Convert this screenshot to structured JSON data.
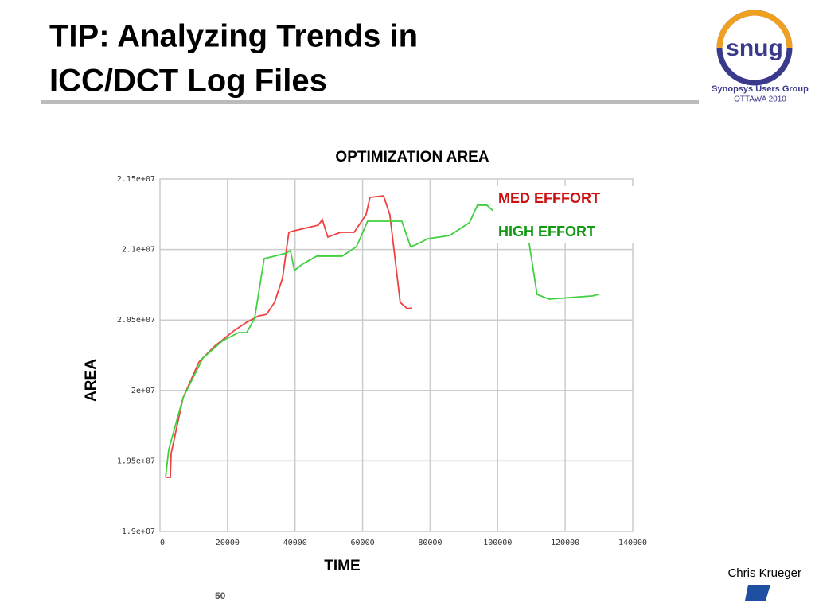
{
  "header": {
    "title_line1": "TIP: Analyzing Trends in",
    "title_line2": "ICC/DCT Log Files",
    "logo": "snug",
    "logo_caption": "Synopsys Users Group",
    "logo_event": "OTTAWA 2010"
  },
  "footer": {
    "author": "Chris Krueger",
    "page": "50"
  },
  "chart_data": {
    "type": "line",
    "title": "OPTIMIZATION AREA",
    "x_label": "TIME",
    "y_label": "AREA",
    "xlim": [
      0,
      140000
    ],
    "xticks": [
      0,
      20000,
      40000,
      60000,
      80000,
      100000,
      120000,
      140000
    ],
    "ylim": [
      19000000,
      21500000
    ],
    "yticks": [
      {
        "value": 19000000,
        "label": "1.9e+07"
      },
      {
        "value": 19500000,
        "label": "1.95e+07"
      },
      {
        "value": 20000000,
        "label": "2e+07"
      },
      {
        "value": 20500000,
        "label": "2.05e+07"
      },
      {
        "value": 21000000,
        "label": "2.1e+07"
      },
      {
        "value": 21500000,
        "label": "2.15e+07"
      }
    ],
    "grid": true,
    "legend": "upper right",
    "series": [
      {
        "name": "MED EFFFORT",
        "color": "#f04040",
        "x": [
          1900,
          3060,
          3300,
          6830,
          11540,
          16250,
          22140,
          25680,
          29210,
          31570,
          33920,
          36280,
          38160,
          39810,
          46880,
          48060,
          49700,
          53470,
          57480,
          61010,
          62190,
          66200,
          68080,
          71140,
          73260,
          74680
        ],
        "values": [
          19384000,
          19384000,
          19553000,
          19948000,
          20202000,
          20315000,
          20428000,
          20484000,
          20529000,
          20540000,
          20625000,
          20795000,
          21122000,
          21133000,
          21173000,
          21212000,
          21088000,
          21122000,
          21122000,
          21246000,
          21370000,
          21381000,
          21246000,
          20625000,
          20580000,
          20586000
        ]
      },
      {
        "name": "HIGH EFFORT",
        "color": "#40d040",
        "x": [
          1650,
          2590,
          6830,
          12720,
          18610,
          23320,
          25680,
          28030,
          30860,
          33920,
          37460,
          38630,
          39810,
          42170,
          46410,
          53950,
          58190,
          61480,
          71610,
          74210,
          75620,
          79390,
          85750,
          91640,
          94000,
          96800,
          109300,
          111660,
          115200,
          128150,
          129800
        ],
        "values": [
          19384000,
          19581000,
          19948000,
          20230000,
          20354000,
          20411000,
          20411000,
          20512000,
          20936000,
          20953000,
          20975000,
          20993000,
          20851000,
          20896000,
          20953000,
          20953000,
          21020000,
          21201000,
          21201000,
          21020000,
          21032000,
          21077000,
          21099000,
          21190000,
          21314000,
          21314000,
          21049000,
          20682000,
          20648000,
          20671000,
          20682000
        ]
      }
    ]
  }
}
